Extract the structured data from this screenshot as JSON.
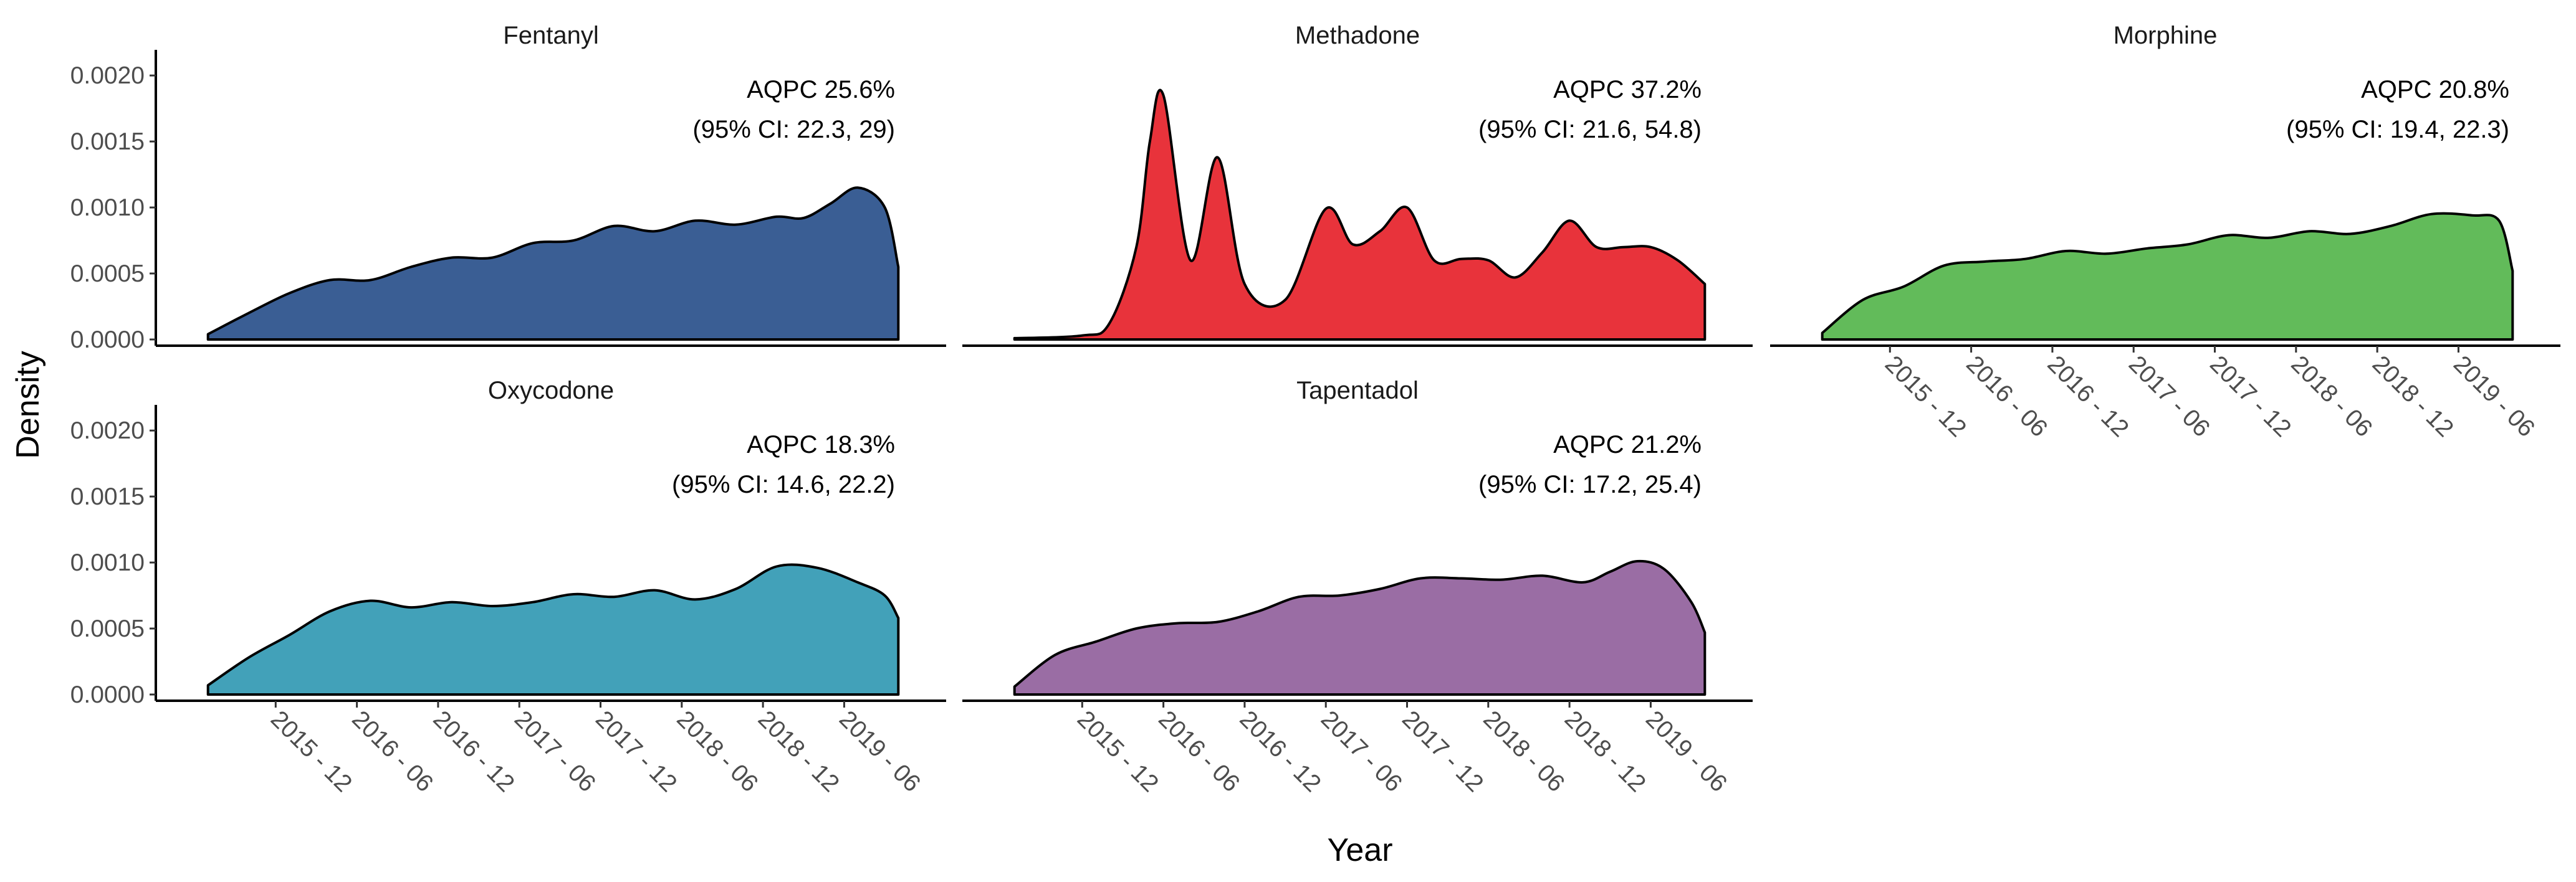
{
  "chart_data": {
    "type": "area",
    "xlabel": "Year",
    "ylabel": "Density",
    "ylim": [
      0,
      0.0021
    ],
    "yticks": [
      "0.0000",
      "0.0005",
      "0.0010",
      "0.0015",
      "0.0020"
    ],
    "xticks": [
      "2015 - 12",
      "2016 - 06",
      "2016 - 12",
      "2017 - 06",
      "2017 - 12",
      "2018 - 06",
      "2018 - 12",
      "2019 - 06"
    ],
    "xlim": [
      "2015-06",
      "2019-11"
    ],
    "grid": false,
    "legend": "none",
    "panels": [
      {
        "name": "Fentanyl",
        "color": "#3A5E94",
        "annotation_line1": "AQPC 25.6%",
        "annotation_line2": "(95% CI: 22.3, 29)",
        "x": [
          "2015-07",
          "2015-10",
          "2016-01",
          "2016-04",
          "2016-07",
          "2016-10",
          "2017-01",
          "2017-04",
          "2017-07",
          "2017-10",
          "2018-01",
          "2018-04",
          "2018-07",
          "2018-10",
          "2019-01",
          "2019-03",
          "2019-05",
          "2019-07",
          "2019-09",
          "2019-10"
        ],
        "y": [
          4e-05,
          0.0002,
          0.00035,
          0.00045,
          0.00045,
          0.00055,
          0.00062,
          0.00062,
          0.00073,
          0.00075,
          0.00086,
          0.00082,
          0.0009,
          0.00087,
          0.00093,
          0.00092,
          0.00103,
          0.00115,
          0.001,
          0.00055
        ]
      },
      {
        "name": "Methadone",
        "color": "#E8333B",
        "annotation_line1": "AQPC 37.2%",
        "annotation_line2": "(95% CI: 21.6, 54.8)",
        "x": [
          "2015-07",
          "2015-12",
          "2016-02",
          "2016-04",
          "2016-05",
          "2016-06",
          "2016-08",
          "2016-10",
          "2016-12",
          "2017-03",
          "2017-06",
          "2017-08",
          "2017-10",
          "2017-12",
          "2018-02",
          "2018-04",
          "2018-06",
          "2018-08",
          "2018-10",
          "2018-12",
          "2019-02",
          "2019-04",
          "2019-06",
          "2019-08",
          "2019-10"
        ],
        "y": [
          1e-05,
          3e-05,
          0.00012,
          0.0007,
          0.0015,
          0.00185,
          0.0006,
          0.00138,
          0.00042,
          0.0003,
          0.00099,
          0.00072,
          0.00082,
          0.001,
          0.0006,
          0.00061,
          0.0006,
          0.00047,
          0.00066,
          0.0009,
          0.0007,
          0.0007,
          0.0007,
          0.0006,
          0.00042
        ]
      },
      {
        "name": "Morphine",
        "color": "#62BB5A",
        "annotation_line1": "AQPC 20.8%",
        "annotation_line2": "(95% CI: 19.4, 22.3)",
        "x": [
          "2015-07",
          "2015-10",
          "2016-01",
          "2016-04",
          "2016-07",
          "2016-10",
          "2017-01",
          "2017-04",
          "2017-07",
          "2017-10",
          "2018-01",
          "2018-04",
          "2018-07",
          "2018-10",
          "2019-01",
          "2019-04",
          "2019-07",
          "2019-09",
          "2019-10"
        ],
        "y": [
          5e-05,
          0.0003,
          0.0004,
          0.00056,
          0.00059,
          0.00061,
          0.00067,
          0.00065,
          0.00069,
          0.00072,
          0.00079,
          0.00077,
          0.00082,
          0.0008,
          0.00086,
          0.00095,
          0.00094,
          0.0009,
          0.00052
        ]
      },
      {
        "name": "Oxycodone",
        "color": "#42A1B9",
        "annotation_line1": "AQPC 18.3%",
        "annotation_line2": "(95% CI: 14.6, 22.2)",
        "x": [
          "2015-07",
          "2015-10",
          "2016-01",
          "2016-04",
          "2016-07",
          "2016-10",
          "2017-01",
          "2017-04",
          "2017-07",
          "2017-10",
          "2018-01",
          "2018-04",
          "2018-07",
          "2018-10",
          "2019-01",
          "2019-04",
          "2019-07",
          "2019-09",
          "2019-10"
        ],
        "y": [
          7e-05,
          0.00028,
          0.00045,
          0.00063,
          0.00071,
          0.00066,
          0.0007,
          0.00067,
          0.0007,
          0.00076,
          0.00074,
          0.00079,
          0.00072,
          0.0008,
          0.00097,
          0.00096,
          0.00085,
          0.00075,
          0.00058
        ]
      },
      {
        "name": "Tapentadol",
        "color": "#9A6DA4",
        "annotation_line1": "AQPC 21.2%",
        "annotation_line2": "(95% CI: 17.2, 25.4)",
        "x": [
          "2015-07",
          "2015-10",
          "2016-01",
          "2016-04",
          "2016-07",
          "2016-10",
          "2017-01",
          "2017-04",
          "2017-07",
          "2017-10",
          "2018-01",
          "2018-04",
          "2018-07",
          "2018-10",
          "2019-01",
          "2019-03",
          "2019-05",
          "2019-07",
          "2019-09",
          "2019-10"
        ],
        "y": [
          6e-05,
          0.0003,
          0.0004,
          0.0005,
          0.00054,
          0.00055,
          0.00063,
          0.00074,
          0.00075,
          0.0008,
          0.00088,
          0.00088,
          0.00087,
          0.0009,
          0.00085,
          0.00093,
          0.00101,
          0.00095,
          0.0007,
          0.00047
        ]
      }
    ]
  }
}
